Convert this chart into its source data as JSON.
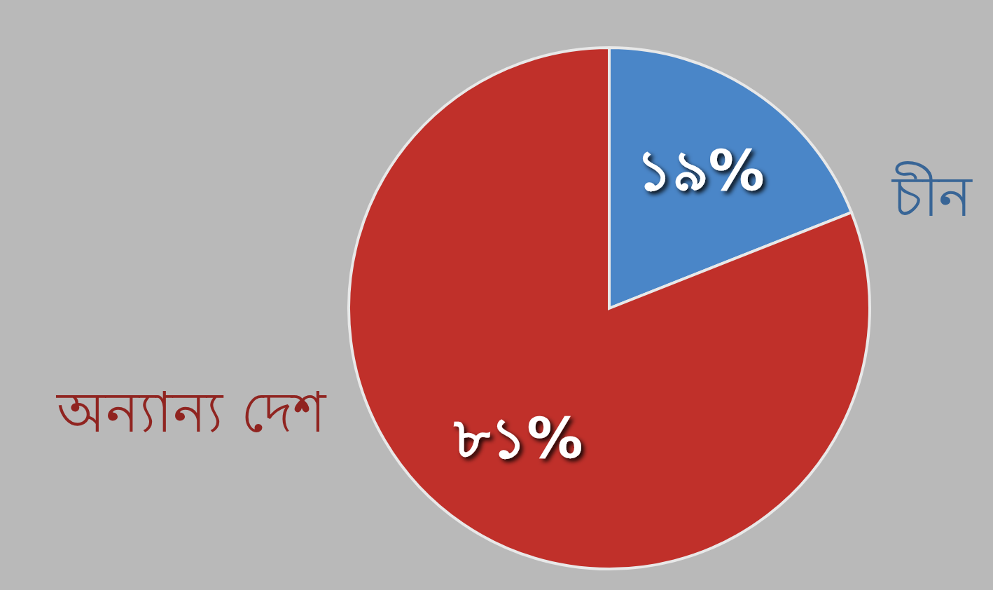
{
  "chart_data": {
    "type": "pie",
    "categories": [
      "চীন",
      "অন্যান্য দেশ"
    ],
    "values": [
      19,
      81
    ],
    "value_labels": [
      "১৯%",
      "৮১%"
    ],
    "colors": [
      "#4a86c8",
      "#c0302a"
    ]
  }
}
